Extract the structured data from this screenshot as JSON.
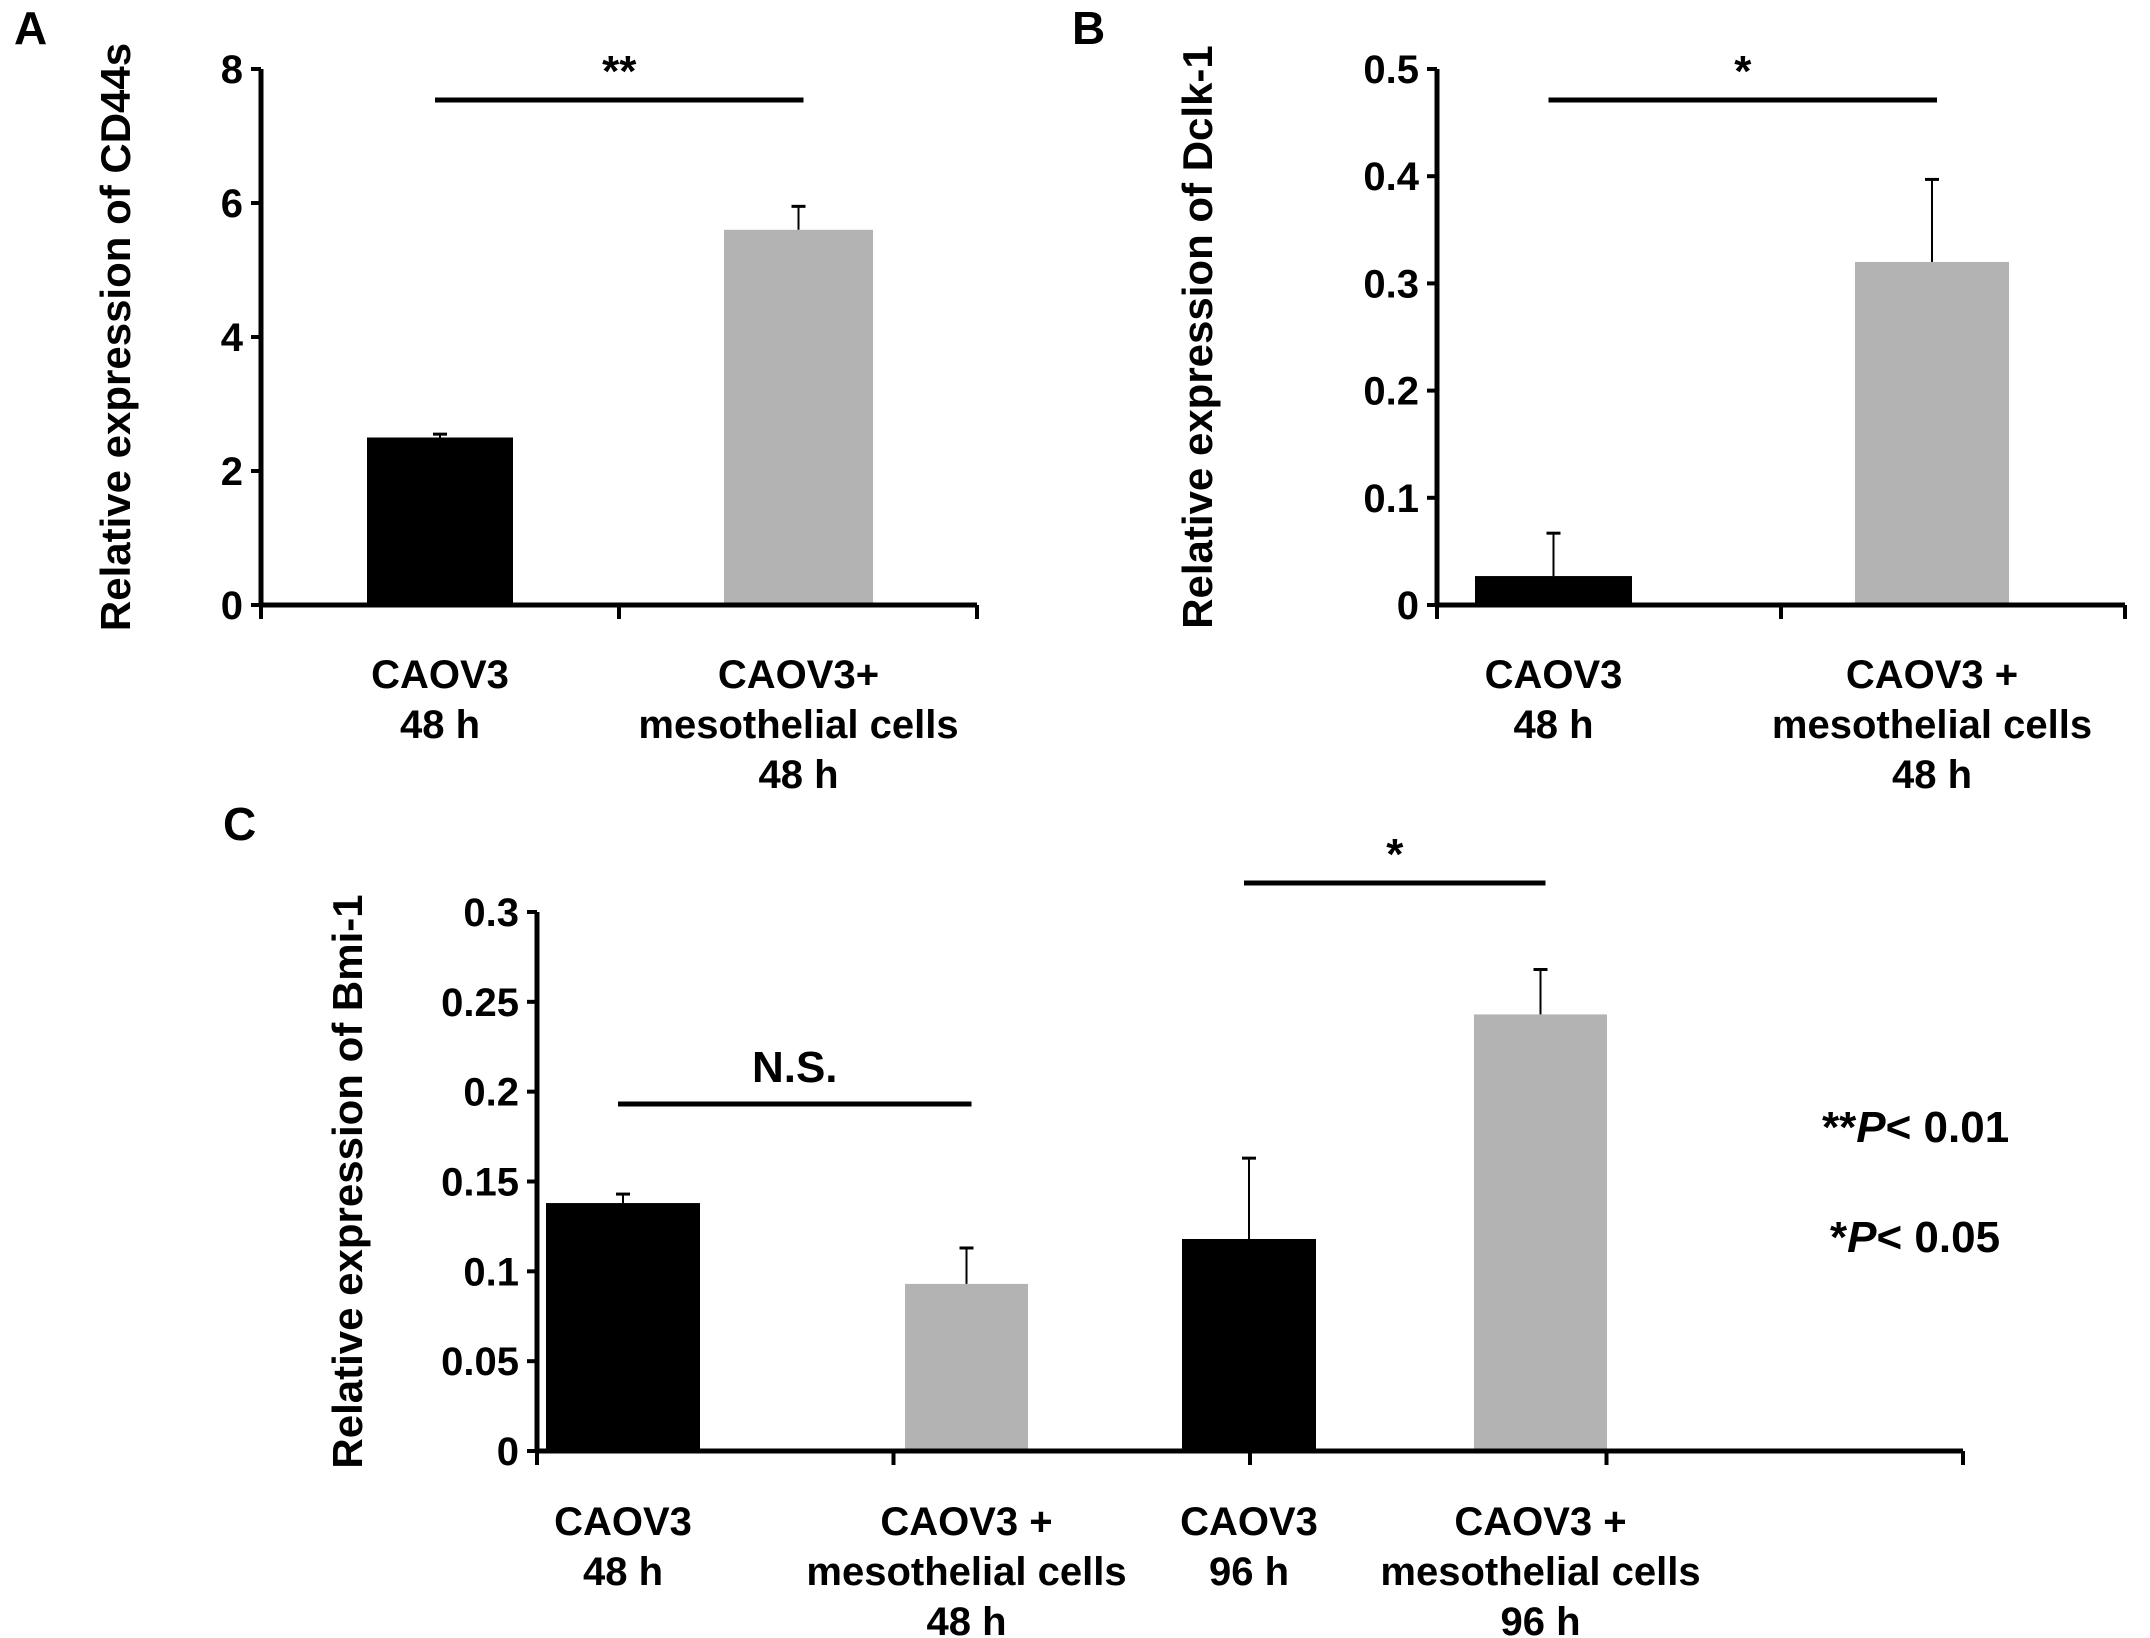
{
  "chart_data": [
    {
      "type": "bar",
      "panel": "A",
      "ylabel": "Relative expression of CD44s",
      "ylim": [
        0,
        8
      ],
      "yticks": [
        "0",
        "2",
        "4",
        "6",
        "8"
      ],
      "categories": [
        [
          "CAOV3",
          "48 h"
        ],
        [
          "CAOV3+",
          "mesothelial cells",
          "48 h"
        ]
      ],
      "values": [
        2.5,
        5.6
      ],
      "errors": [
        0.05,
        0.35
      ],
      "colors": [
        "#000000",
        "#b3b3b3"
      ],
      "significance": [
        {
          "between": [
            0,
            1
          ],
          "label": "**"
        }
      ]
    },
    {
      "type": "bar",
      "panel": "B",
      "ylabel": "Relative expression of Dclk-1",
      "ylim": [
        0,
        0.5
      ],
      "yticks": [
        "0",
        "0.1",
        "0.2",
        "0.3",
        "0.4",
        "0.5"
      ],
      "categories": [
        [
          "CAOV3",
          "48 h"
        ],
        [
          "CAOV3 +",
          "mesothelial cells",
          "48 h"
        ]
      ],
      "values": [
        0.027,
        0.32
      ],
      "errors": [
        0.04,
        0.077
      ],
      "colors": [
        "#000000",
        "#b3b3b3"
      ],
      "significance": [
        {
          "between": [
            0,
            1
          ],
          "label": "*"
        }
      ]
    },
    {
      "type": "bar",
      "panel": "C",
      "ylabel": "Relative expression of Bmi-1",
      "ylim": [
        0,
        0.3
      ],
      "yticks": [
        "0",
        "0.05",
        "0.1",
        "0.15",
        "0.2",
        "0.25",
        "0.3"
      ],
      "categories": [
        [
          "CAOV3",
          "48 h"
        ],
        [
          "CAOV3 +",
          "mesothelial cells",
          "48 h"
        ],
        [
          "CAOV3",
          "96 h"
        ],
        [
          "CAOV3 +",
          "mesothelial cells",
          "96 h"
        ]
      ],
      "values": [
        0.138,
        0.093,
        0.118,
        0.243
      ],
      "errors": [
        0.005,
        0.02,
        0.045,
        0.025
      ],
      "colors": [
        "#000000",
        "#b3b3b3",
        "#000000",
        "#b3b3b3"
      ],
      "significance": [
        {
          "between": [
            0,
            1
          ],
          "label": "N.S."
        },
        {
          "between": [
            2,
            3
          ],
          "label": "*"
        }
      ]
    }
  ],
  "legend": {
    "p01": {
      "stars": "**",
      "p": "P",
      "rest": "< 0.01"
    },
    "p05": {
      "stars": "*",
      "p": "P",
      "rest": "< 0.05"
    }
  }
}
